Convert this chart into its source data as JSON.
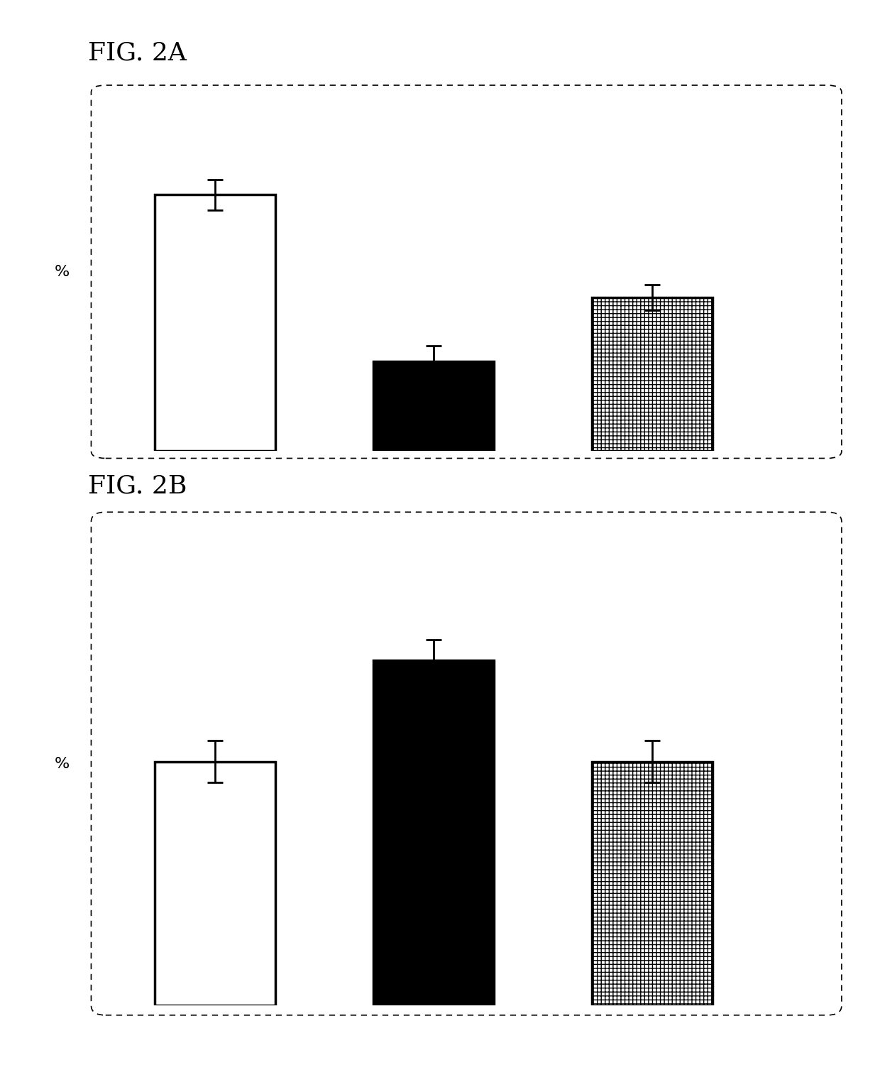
{
  "fig2a": {
    "values": [
      100,
      35,
      60
    ],
    "errors": [
      6,
      6,
      5
    ],
    "colors": [
      "white",
      "black",
      "white"
    ],
    "hatches": [
      "",
      "",
      "+++"
    ],
    "edgecolors": [
      "black",
      "black",
      "black"
    ],
    "ylabel": "%",
    "title": "FIG. 2A",
    "ylim_max": 140
  },
  "fig2b": {
    "values": [
      58,
      82,
      58
    ],
    "errors": [
      5,
      5,
      5
    ],
    "colors": [
      "white",
      "black",
      "white"
    ],
    "hatches": [
      "",
      "",
      "+++"
    ],
    "edgecolors": [
      "black",
      "black",
      "black"
    ],
    "ylabel": "%",
    "title": "FIG. 2B",
    "ylim_max": 115
  },
  "bar_width": 0.55,
  "bar_positions": [
    1,
    2,
    3
  ],
  "background_color": "#ffffff",
  "title_fontsize": 26,
  "ylabel_fontsize": 16,
  "hatch_density": "+++"
}
